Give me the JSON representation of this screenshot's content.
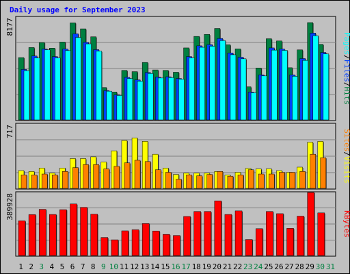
{
  "title": "Daily usage for September 2023",
  "colors": {
    "hits": "#008040",
    "files": "#0040ff",
    "pages": "#00ffff",
    "visits": "#ffff00",
    "sites": "#ff8000",
    "kbytes": "#ff0000",
    "weekend_day": "#008040",
    "weekday": "#000000",
    "bg": "#c0c0c0"
  },
  "chart_data": [
    {
      "type": "bar",
      "name": "hits-files-pages",
      "ymax_label": "8177",
      "ymax": 8177,
      "legend": [
        "Pages",
        "/",
        "Files",
        "/",
        "Hits"
      ],
      "categories": [
        "1",
        "2",
        "3",
        "4",
        "5",
        "6",
        "7",
        "8",
        "9",
        "10",
        "11",
        "12",
        "13",
        "14",
        "15",
        "16",
        "17",
        "18",
        "19",
        "20",
        "21",
        "22",
        "23",
        "24",
        "25",
        "26",
        "27",
        "28",
        "29",
        "30",
        "31"
      ],
      "series": [
        {
          "name": "Hits",
          "values": [
            5150,
            5970,
            6380,
            5920,
            6420,
            7990,
            7500,
            6850,
            2700,
            2330,
            4100,
            4000,
            4750,
            4140,
            4100,
            3950,
            5940,
            6880,
            7040,
            7530,
            6200,
            5860,
            2760,
            4300,
            6690,
            6510,
            4320,
            5780,
            8010,
            6230,
            null
          ]
        },
        {
          "name": "Files",
          "values": [
            4180,
            5280,
            5850,
            5230,
            5850,
            7100,
            6400,
            5800,
            2450,
            2100,
            3530,
            3330,
            3930,
            3550,
            3580,
            3440,
            5230,
            6110,
            6210,
            6710,
            5530,
            5180,
            2330,
            3740,
            5940,
            5850,
            3740,
            5070,
            7150,
            5570,
            null
          ]
        },
        {
          "name": "Pages",
          "values": [
            4080,
            5120,
            5780,
            5120,
            5720,
            6800,
            6270,
            5680,
            2400,
            2050,
            3440,
            3220,
            3850,
            3480,
            3510,
            3380,
            5120,
            5990,
            6080,
            6540,
            5380,
            5050,
            2270,
            3650,
            5760,
            5740,
            3620,
            4920,
            6940,
            5450,
            null
          ]
        }
      ]
    },
    {
      "type": "bar",
      "name": "visits-sites",
      "ymax_label": "717",
      "ymax": 717,
      "legend": [
        "Sites",
        "/",
        "Visits"
      ],
      "categories": [
        "1",
        "2",
        "3",
        "4",
        "5",
        "6",
        "7",
        "8",
        "9",
        "10",
        "11",
        "12",
        "13",
        "14",
        "15",
        "16",
        "17",
        "18",
        "19",
        "20",
        "21",
        "22",
        "23",
        "24",
        "25",
        "26",
        "27",
        "28",
        "29",
        "30",
        "31"
      ],
      "series": [
        {
          "name": "Visits",
          "values": [
            215,
            205,
            245,
            185,
            245,
            355,
            355,
            375,
            315,
            445,
            565,
            595,
            555,
            405,
            245,
            170,
            185,
            185,
            185,
            205,
            165,
            195,
            240,
            235,
            235,
            215,
            195,
            255,
            545,
            555,
            null
          ]
        },
        {
          "name": "Sites",
          "values": [
            165,
            165,
            175,
            165,
            205,
            250,
            285,
            285,
            235,
            265,
            305,
            335,
            320,
            225,
            195,
            115,
            165,
            155,
            170,
            205,
            150,
            165,
            225,
            175,
            175,
            195,
            195,
            205,
            405,
            365,
            null
          ]
        }
      ]
    },
    {
      "type": "bar",
      "name": "kbytes",
      "ymax_label": "389928",
      "ymax": 389928,
      "legend": [
        "KBytes"
      ],
      "categories": [
        "1",
        "2",
        "3",
        "4",
        "5",
        "6",
        "7",
        "8",
        "9",
        "10",
        "11",
        "12",
        "13",
        "14",
        "15",
        "16",
        "17",
        "18",
        "19",
        "20",
        "21",
        "22",
        "23",
        "24",
        "25",
        "26",
        "27",
        "28",
        "29",
        "30",
        "31"
      ],
      "series": [
        {
          "name": "KBytes",
          "values": [
            229000,
            269000,
            303000,
            270000,
            301000,
            338000,
            316000,
            272000,
            121000,
            106000,
            164000,
            171000,
            211000,
            163000,
            141000,
            134000,
            257000,
            289000,
            289000,
            358000,
            270000,
            293000,
            108000,
            178000,
            289000,
            275000,
            180000,
            259000,
            412000,
            280000,
            null
          ]
        }
      ]
    }
  ],
  "days": [
    {
      "label": "1",
      "weekend": false
    },
    {
      "label": "2",
      "weekend": false
    },
    {
      "label": "3",
      "weekend": true
    },
    {
      "label": "4",
      "weekend": false
    },
    {
      "label": "5",
      "weekend": false
    },
    {
      "label": "6",
      "weekend": false
    },
    {
      "label": "7",
      "weekend": false
    },
    {
      "label": "8",
      "weekend": false
    },
    {
      "label": "9",
      "weekend": true
    },
    {
      "label": "10",
      "weekend": true
    },
    {
      "label": "11",
      "weekend": false
    },
    {
      "label": "12",
      "weekend": false
    },
    {
      "label": "13",
      "weekend": false
    },
    {
      "label": "14",
      "weekend": false
    },
    {
      "label": "15",
      "weekend": false
    },
    {
      "label": "16",
      "weekend": true
    },
    {
      "label": "17",
      "weekend": true
    },
    {
      "label": "18",
      "weekend": false
    },
    {
      "label": "19",
      "weekend": false
    },
    {
      "label": "20",
      "weekend": false
    },
    {
      "label": "21",
      "weekend": false
    },
    {
      "label": "22",
      "weekend": false
    },
    {
      "label": "23",
      "weekend": true
    },
    {
      "label": "24",
      "weekend": true
    },
    {
      "label": "25",
      "weekend": false
    },
    {
      "label": "26",
      "weekend": false
    },
    {
      "label": "27",
      "weekend": false
    },
    {
      "label": "28",
      "weekend": false
    },
    {
      "label": "29",
      "weekend": false
    },
    {
      "label": "30",
      "weekend": true
    },
    {
      "label": "31",
      "weekend": true
    }
  ]
}
